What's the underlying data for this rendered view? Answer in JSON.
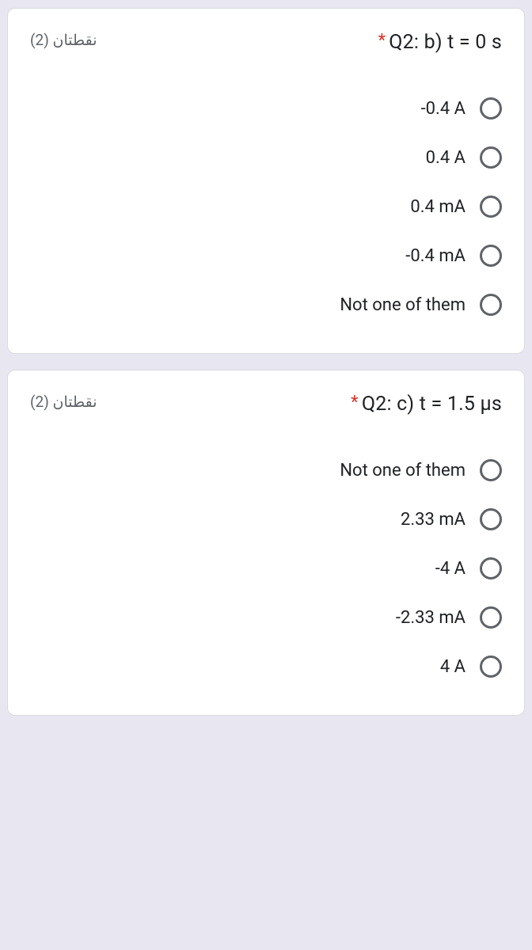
{
  "questions": [
    {
      "points": "نقطتان (2)",
      "title": "Q2: b) t = 0 s",
      "options": [
        "-0.4 A",
        "0.4 A",
        "0.4 mA",
        "-0.4 mA",
        "Not one of them"
      ]
    },
    {
      "points": "نقطتان (2)",
      "title": "Q2: c) t = 1.5 μs",
      "options": [
        "Not one of them",
        "2.33 mA",
        "-4 A",
        "-2.33 mA",
        "4 A"
      ]
    }
  ]
}
